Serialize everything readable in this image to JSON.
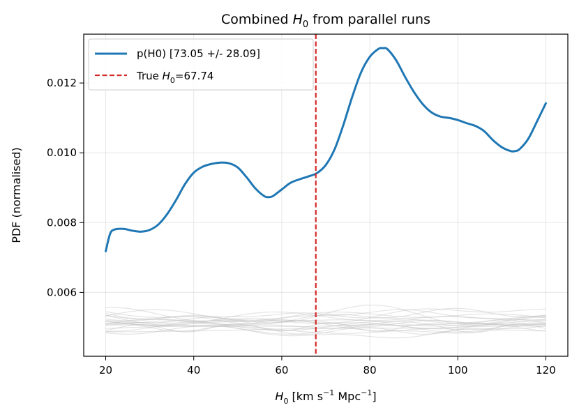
{
  "chart_data": {
    "type": "line",
    "title": "Combined H0 from parallel runs",
    "title_parts": {
      "prefix": "Combined ",
      "var": "H",
      "sub": "0",
      "suffix": " from parallel runs"
    },
    "xlabel": "H0 [km s^-1 Mpc^-1]",
    "xlabel_parts": {
      "var": "H",
      "sub": "0",
      "rest1": " [km s",
      "exp1": "−1",
      "rest2": " Mpc",
      "exp2": "−1",
      "rest3": "]"
    },
    "ylabel": "PDF (normalised)",
    "xlim": [
      15,
      125
    ],
    "ylim": [
      0.00417,
      0.0134
    ],
    "xticks": [
      20,
      40,
      60,
      80,
      100,
      120
    ],
    "yticks": [
      0.006,
      0.008,
      0.01,
      0.012
    ],
    "xtick_labels": [
      "20",
      "40",
      "60",
      "80",
      "100",
      "120"
    ],
    "ytick_labels": [
      "0.006",
      "0.008",
      "0.010",
      "0.012"
    ],
    "grid": true,
    "legend_position": "top-left",
    "series": [
      {
        "name": "p(H0) [73.05 +/- 28.09]",
        "color": "#1f77b4",
        "style": "solid",
        "x": [
          20,
          21,
          22,
          24,
          26,
          28,
          30,
          32,
          34,
          36,
          38,
          40,
          42,
          44,
          46,
          48,
          50,
          52,
          54,
          56,
          57,
          58,
          60,
          62,
          64,
          66,
          68,
          70,
          72,
          74,
          76,
          78,
          80,
          82,
          83,
          84,
          86,
          88,
          90,
          92,
          94,
          96,
          98,
          100,
          102,
          104,
          106,
          108,
          110,
          112,
          113,
          114,
          116,
          118,
          120
        ],
        "values": [
          0.00718,
          0.00768,
          0.0078,
          0.00782,
          0.00777,
          0.00774,
          0.00779,
          0.00795,
          0.00825,
          0.00865,
          0.0091,
          0.00943,
          0.0096,
          0.00968,
          0.00972,
          0.0097,
          0.00958,
          0.0093,
          0.00898,
          0.00876,
          0.00873,
          0.00876,
          0.00895,
          0.00914,
          0.00924,
          0.00932,
          0.00942,
          0.00965,
          0.0101,
          0.0108,
          0.0116,
          0.0123,
          0.01275,
          0.01298,
          0.013,
          0.01297,
          0.01265,
          0.01218,
          0.01175,
          0.0114,
          0.01116,
          0.01104,
          0.011,
          0.01094,
          0.01085,
          0.01077,
          0.01062,
          0.01036,
          0.01016,
          0.01005,
          0.01005,
          0.0101,
          0.0104,
          0.0109,
          0.01142
        ]
      },
      {
        "name": "True H0=67.74",
        "label_parts": {
          "prefix": "True ",
          "var": "H",
          "sub": "0",
          "suffix": "=67.74"
        },
        "color": "#d62728",
        "style": "dashed",
        "x_value": 67.74
      }
    ],
    "background_runs": {
      "color": "#bbbbbb",
      "count": 20,
      "x_range": [
        20,
        120
      ],
      "y_range": [
        0.0045,
        0.0058
      ]
    }
  }
}
